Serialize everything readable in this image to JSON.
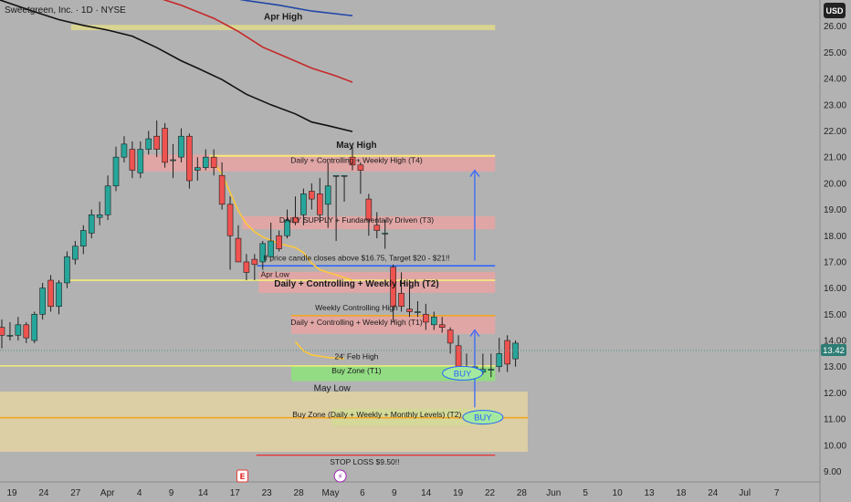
{
  "header": {
    "title": "Sweetgreen, Inc. · 1D · NYSE",
    "currency": "USD",
    "price_badge": "13.42"
  },
  "chart_data": {
    "type": "candlestick",
    "symbol": "Sweetgreen, Inc.",
    "interval": "1D",
    "exchange": "NYSE",
    "ylim": [
      8.6,
      27.0
    ],
    "y_ticks": [
      "26.00",
      "25.00",
      "24.00",
      "23.00",
      "22.00",
      "21.00",
      "20.00",
      "19.00",
      "18.00",
      "17.00",
      "16.00",
      "15.00",
      "14.00",
      "13.00",
      "12.00",
      "11.00",
      "10.00",
      "9.00"
    ],
    "x_ticks": [
      "19",
      "24",
      "27",
      "Apr",
      "4",
      "9",
      "14",
      "17",
      "23",
      "28",
      "May",
      "6",
      "9",
      "14",
      "19",
      "22",
      "28",
      "Jun",
      "5",
      "10",
      "13",
      "18",
      "24",
      "Jul",
      "7"
    ],
    "candles": [
      [
        14.5,
        14.2,
        14.8,
        13.7
      ],
      [
        14.2,
        14.2,
        14.7,
        14.0
      ],
      [
        14.2,
        14.6,
        14.9,
        14.0
      ],
      [
        14.6,
        14.1,
        14.7,
        13.9
      ],
      [
        14.0,
        15.0,
        15.1,
        13.9
      ],
      [
        15.0,
        16.0,
        16.2,
        14.8
      ],
      [
        16.3,
        15.3,
        16.5,
        15.1
      ],
      [
        15.3,
        16.2,
        16.3,
        15.0
      ],
      [
        16.2,
        17.2,
        17.4,
        16.0
      ],
      [
        17.1,
        17.6,
        17.8,
        16.9
      ],
      [
        17.6,
        18.2,
        18.4,
        17.3
      ],
      [
        18.1,
        18.8,
        19.0,
        17.9
      ],
      [
        18.7,
        18.8,
        19.3,
        18.4
      ],
      [
        18.8,
        19.9,
        20.3,
        18.6
      ],
      [
        19.9,
        21.0,
        21.4,
        19.7
      ],
      [
        21.0,
        21.5,
        21.8,
        20.8
      ],
      [
        21.3,
        20.5,
        21.6,
        20.2
      ],
      [
        20.4,
        21.3,
        21.6,
        20.2
      ],
      [
        21.3,
        21.7,
        22.0,
        21.1
      ],
      [
        21.8,
        21.3,
        22.4,
        21.0
      ],
      [
        22.1,
        20.8,
        22.3,
        20.6
      ],
      [
        20.9,
        20.9,
        21.5,
        20.2
      ],
      [
        21.0,
        21.8,
        22.1,
        20.8
      ],
      [
        21.8,
        20.1,
        21.9,
        19.8
      ],
      [
        20.5,
        20.6,
        21.0,
        20.1
      ],
      [
        20.6,
        21.0,
        21.3,
        20.5
      ],
      [
        21.0,
        20.6,
        21.3,
        20.3
      ],
      [
        20.3,
        19.2,
        20.8,
        19.0
      ],
      [
        19.2,
        18.0,
        19.5,
        16.7
      ],
      [
        17.9,
        17.0,
        18.4,
        17.8
      ],
      [
        17.0,
        16.6,
        17.3,
        16.3
      ],
      [
        17.1,
        16.9,
        17.3,
        16.3
      ],
      [
        17.0,
        17.7,
        17.8,
        16.7
      ],
      [
        17.2,
        17.8,
        18.5,
        17.2
      ],
      [
        18.0,
        17.5,
        18.2,
        17.4
      ],
      [
        18.0,
        18.6,
        19.0,
        17.9
      ],
      [
        18.7,
        18.5,
        19.5,
        18.4
      ],
      [
        18.8,
        19.6,
        19.8,
        18.4
      ],
      [
        19.7,
        19.4,
        20.0,
        19.0
      ],
      [
        19.6,
        18.8,
        20.2,
        18.5
      ],
      [
        19.2,
        19.9,
        20.8,
        18.3
      ],
      [
        20.3,
        20.3,
        20.3,
        17.8
      ],
      [
        20.3,
        20.3,
        20.3,
        19.3
      ],
      [
        21.0,
        20.7,
        21.4,
        20.5
      ],
      [
        20.7,
        20.5,
        20.8,
        19.6
      ],
      [
        19.4,
        18.6,
        19.6,
        18.0
      ],
      [
        18.4,
        18.2,
        18.9,
        17.9
      ],
      [
        18.1,
        18.1,
        18.6,
        17.5
      ],
      [
        16.8,
        15.3,
        16.9,
        14.7
      ],
      [
        15.8,
        15.3,
        16.6,
        15.1
      ],
      [
        15.2,
        15.1,
        16.3,
        14.9
      ],
      [
        15.1,
        15.1,
        15.5,
        14.9
      ],
      [
        15.0,
        14.7,
        15.4,
        14.4
      ],
      [
        14.6,
        14.9,
        15.1,
        14.4
      ],
      [
        14.6,
        14.5,
        14.9,
        14.3
      ],
      [
        14.4,
        13.9,
        14.5,
        13.5
      ],
      [
        13.8,
        12.8,
        14.2,
        12.6
      ],
      [
        12.9,
        13.0,
        13.5,
        12.8
      ],
      [
        12.9,
        13.0,
        13.4,
        12.7
      ],
      [
        12.8,
        12.9,
        13.5,
        12.7
      ],
      [
        12.9,
        12.9,
        13.5,
        12.6
      ],
      [
        13.0,
        13.5,
        14.1,
        12.8
      ],
      [
        14.0,
        13.1,
        14.2,
        12.8
      ],
      [
        13.3,
        13.9,
        14.0,
        13.0
      ]
    ],
    "moving_averages": [
      {
        "color": "#2146a8",
        "points": [
          [
            15.5,
            28.1
          ],
          [
            18,
            27.7
          ],
          [
            22,
            27.45
          ],
          [
            26,
            27.2
          ],
          [
            30,
            26.98
          ],
          [
            34,
            26.8
          ],
          [
            38,
            26.58
          ],
          [
            43,
            26.4
          ]
        ]
      },
      {
        "color": "#c62828",
        "points": [
          [
            15.5,
            27.65
          ],
          [
            18,
            27.2
          ],
          [
            22,
            26.8
          ],
          [
            26,
            26.3
          ],
          [
            29,
            25.8
          ],
          [
            32,
            25.2
          ],
          [
            35,
            24.8
          ],
          [
            38,
            24.4
          ],
          [
            41,
            24.1
          ],
          [
            43,
            23.86
          ]
        ]
      },
      {
        "color": "#111111",
        "points": [
          [
            -1,
            27.0
          ],
          [
            4,
            26.55
          ],
          [
            7,
            26.25
          ],
          [
            10,
            26.03
          ],
          [
            13,
            25.85
          ],
          [
            16,
            25.62
          ],
          [
            19,
            25.18
          ],
          [
            22,
            24.68
          ],
          [
            24,
            24.4
          ],
          [
            27,
            23.96
          ],
          [
            30,
            23.4
          ],
          [
            33,
            23.0
          ],
          [
            36,
            22.65
          ],
          [
            38,
            22.34
          ],
          [
            40,
            22.2
          ],
          [
            43,
            21.98
          ]
        ]
      },
      {
        "color": "#ffc83a",
        "points": [
          [
            26,
            20.8
          ],
          [
            27,
            20.35
          ],
          [
            28,
            19.65
          ],
          [
            29,
            18.95
          ],
          [
            30,
            18.45
          ],
          [
            31,
            18.15
          ],
          [
            32,
            17.95
          ],
          [
            34,
            17.7
          ],
          [
            36,
            17.55
          ],
          [
            37,
            17.35
          ],
          [
            38,
            16.95
          ],
          [
            39,
            16.7
          ],
          [
            41,
            16.5
          ],
          [
            43,
            16.3
          ]
        ]
      },
      {
        "color": "#ffc83a",
        "points": [
          [
            36,
            13.95
          ],
          [
            37,
            13.6
          ],
          [
            38,
            13.45
          ],
          [
            40,
            13.35
          ],
          [
            42,
            13.3
          ]
        ]
      }
    ],
    "zones": [
      {
        "y1": 25.85,
        "y2": 26.05,
        "color": "#f4ec7a",
        "opacity": 0.6,
        "x_from": 8.5,
        "x_to": 60.5
      },
      {
        "y1": 20.45,
        "y2": 21.1,
        "color": "#e8a3a3",
        "opacity": 0.85,
        "x_from": 16.5,
        "x_to": 60.5
      },
      {
        "y1": 18.25,
        "y2": 18.75,
        "color": "#e8a3a3",
        "opacity": 0.85,
        "x_from": 29.5,
        "x_to": 60.5
      },
      {
        "y1": 15.82,
        "y2": 16.62,
        "color": "#e8a3a3",
        "opacity": 0.85,
        "x_from": 31.5,
        "x_to": 60.5
      },
      {
        "y1": 14.25,
        "y2": 14.92,
        "color": "#e8a3a3",
        "opacity": 0.85,
        "x_from": 35.5,
        "x_to": 60.5
      },
      {
        "y1": 12.45,
        "y2": 13.05,
        "color": "#8fe07e",
        "opacity": 0.9,
        "x_from": 35.5,
        "x_to": 60.5
      },
      {
        "y1": 10.75,
        "y2": 11.4,
        "color": "#8fe07e",
        "opacity": 0.9,
        "x_from": 40.5,
        "x_to": 60.5
      },
      {
        "y1": 9.75,
        "y2": 12.05,
        "color": "#ead7a0",
        "opacity": 0.75,
        "x_from": -2,
        "x_to": 64.5
      }
    ],
    "lines": [
      {
        "y": 21.05,
        "color": "#f4ec7a",
        "x_from": 25.5,
        "x_to": 60.5,
        "width": 2
      },
      {
        "y": 16.85,
        "color": "#2962ff",
        "x_from": 31.3,
        "x_to": 60.5,
        "width": 1.4
      },
      {
        "y": 16.3,
        "color": "#f4ec7a",
        "x_from": 8.2,
        "x_to": 60.5,
        "width": 1.6
      },
      {
        "y": 14.95,
        "color": "#f2a623",
        "x_from": 35.5,
        "x_to": 60.5,
        "width": 1.6
      },
      {
        "y": 13.03,
        "color": "#f4ec7a",
        "x_from": -2,
        "x_to": 60.5,
        "width": 1.6
      },
      {
        "y": 11.05,
        "color": "#f2a623",
        "x_from": -2,
        "x_to": 64.5,
        "width": 1.6
      },
      {
        "y": 9.62,
        "color": "#e53935",
        "x_from": 31.2,
        "x_to": 60.5,
        "width": 1.4
      }
    ],
    "annotations": [
      {
        "text": "Apr High",
        "y": 26.25,
        "x": 34.5,
        "size": 10,
        "weight": "bold"
      },
      {
        "text": "May High",
        "y": 21.35,
        "x": 43.5,
        "size": 10,
        "weight": "bold"
      },
      {
        "text": "Daily + Controlling + Weekly High (T4)",
        "y": 20.78,
        "x": 43.5,
        "size": 8.5,
        "weight": "normal"
      },
      {
        "text": "DAILY SUPPLY + Fundamentally Driven (T3)",
        "y": 18.5,
        "x": 43.5,
        "size": 8.5,
        "weight": "normal"
      },
      {
        "text": "If price candle closes above $16.75, Target $20 - $21!!",
        "y": 17.05,
        "x": 43.5,
        "size": 8.5,
        "weight": "normal"
      },
      {
        "text": "Apr Low",
        "y": 16.42,
        "x": 33.5,
        "size": 8.5,
        "weight": "normal"
      },
      {
        "text": "Daily + Controlling + Weekly High (T2)",
        "y": 16.05,
        "x": 43.5,
        "size": 10,
        "weight": "bold"
      },
      {
        "text": "Weekly Controlling High",
        "y": 15.15,
        "x": 43.5,
        "size": 8.5,
        "weight": "normal"
      },
      {
        "text": "Daily + Controlling + Weekly High (T1)",
        "y": 14.6,
        "x": 43.5,
        "size": 8.5,
        "weight": "normal"
      },
      {
        "text": "24' Feb High",
        "y": 13.28,
        "x": 43.5,
        "size": 8.5,
        "weight": "normal"
      },
      {
        "text": "Buy Zone (T1)",
        "y": 12.75,
        "x": 43.5,
        "size": 8.5,
        "weight": "normal"
      },
      {
        "text": "May Low",
        "y": 12.06,
        "x": 40.5,
        "size": 10,
        "weight": "normal"
      },
      {
        "text": "Buy Zone  (Daily + Weekly + Monthly Levels) (T2)",
        "y": 11.07,
        "x": 46,
        "size": 8.5,
        "weight": "normal"
      },
      {
        "text": "STOP LOSS $9.50!!",
        "y": 9.27,
        "x": 44.5,
        "size": 8.5,
        "weight": "normal"
      }
    ],
    "arrows": [
      {
        "x": 58,
        "y_from": 17.05,
        "y_to": 20.5
      },
      {
        "x": 58,
        "y_from": 11.45,
        "y_to": 14.4
      }
    ],
    "buy_pills": [
      {
        "text": "BUY",
        "x": 56.5,
        "y": 12.75
      },
      {
        "text": "BUY",
        "x": 59.0,
        "y": 11.07
      }
    ],
    "event_markers": [
      {
        "text": "E",
        "x": 29.5,
        "color": "#e53935"
      },
      {
        "text": "⚡",
        "x": 41.5,
        "color": "#9c27b0"
      }
    ],
    "current_price": 13.42,
    "colors": {
      "up": "#26a69a",
      "down": "#ef5350"
    }
  }
}
